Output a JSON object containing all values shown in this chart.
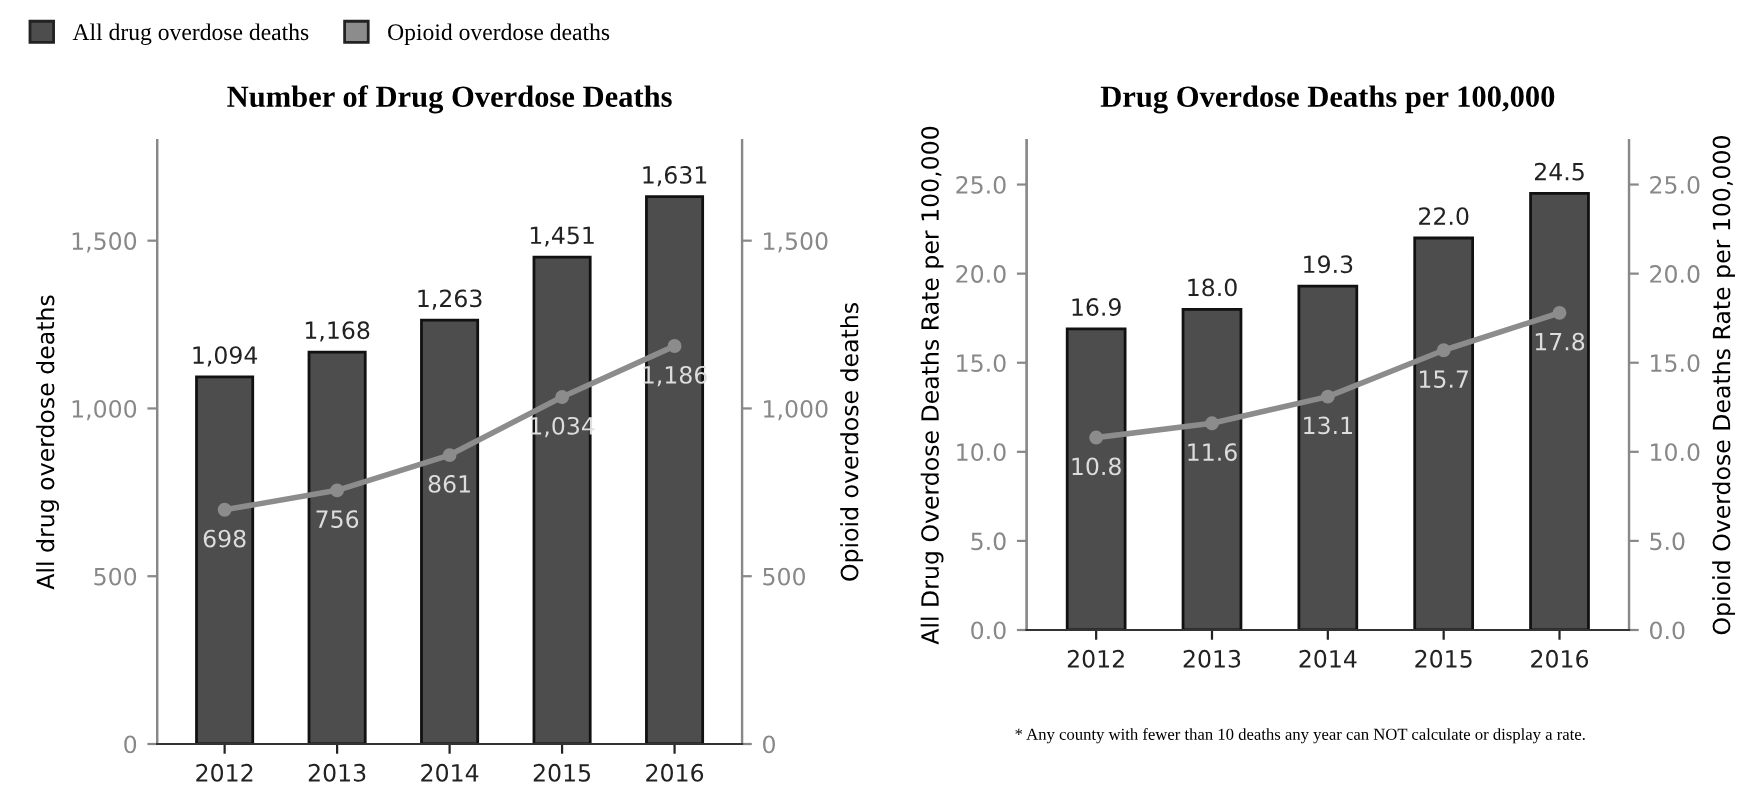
{
  "chart_data": [
    {
      "type": "bar",
      "title": "Number of Drug Overdose Deaths",
      "ylabel": "All drug overdose deaths",
      "y2label": "Opioid overdose deaths",
      "categories": [
        "2012",
        "2013",
        "2014",
        "2015",
        "2016"
      ],
      "series": [
        {
          "name": "All drug overdose deaths",
          "color": "#4d4d4d",
          "values": [
            1094,
            1168,
            1263,
            1451,
            1631
          ],
          "value_labels": [
            "1,094",
            "1,168",
            "1,263",
            "1,451",
            "1,631"
          ]
        },
        {
          "name": "Opioid overdose deaths",
          "type": "line",
          "axis": "y2",
          "color": "#8c8c8c",
          "values": [
            698,
            756,
            861,
            1034,
            1186
          ],
          "value_labels": [
            "698",
            "756",
            "861",
            "1,034",
            "1,186"
          ]
        }
      ],
      "ylim": [
        0,
        1800
      ],
      "yticks": [
        0,
        500,
        {
          "value": 1000,
          "label": "1,000"
        },
        {
          "value": 1500,
          "label": "1,500"
        }
      ],
      "y2lim": [
        0,
        1800
      ],
      "y2ticks": [
        0,
        500,
        {
          "value": 1000,
          "label": "1,000"
        },
        {
          "value": 1500,
          "label": "1,500"
        }
      ],
      "marker": "circle",
      "line_style": "solid",
      "grid": false,
      "legend": "top left"
    },
    {
      "type": "bar",
      "title": "Drug Overdose Deaths per 100,000",
      "ylabel": "All Drug Overdose Deaths Rate per 100,000",
      "y2label": "Opioid Overdose Deaths Rate per 100,000",
      "categories": [
        "2012",
        "2013",
        "2014",
        "2015",
        "2016"
      ],
      "series": [
        {
          "color": "#4d4d4d",
          "values": [
            16.9,
            18.0,
            19.3,
            22.0,
            24.5
          ],
          "value_labels": [
            "16.9",
            "18.0",
            "19.3",
            "22.0",
            "24.5"
          ]
        },
        {
          "type": "line",
          "axis": "y2",
          "color": "#8c8c8c",
          "values": [
            10.8,
            11.6,
            13.1,
            15.7,
            17.8
          ],
          "value_labels": [
            "10.8",
            "11.6",
            "13.1",
            "15.7",
            "17.8"
          ]
        }
      ],
      "ylim": [
        0,
        27.5
      ],
      "yticks": [
        {
          "value": 0,
          "label": "0.0"
        },
        {
          "value": 5,
          "label": "5.0"
        },
        {
          "value": 10,
          "label": "10.0"
        },
        {
          "value": 15,
          "label": "15.0"
        },
        {
          "value": 20,
          "label": "20.0"
        },
        {
          "value": 25,
          "label": "25.0"
        }
      ],
      "y2lim": [
        0,
        27.5
      ],
      "y2ticks": [
        {
          "value": 0,
          "label": "0.0"
        },
        {
          "value": 5,
          "label": "5.0"
        },
        {
          "value": 10,
          "label": "10.0"
        },
        {
          "value": 15,
          "label": "15.0"
        },
        {
          "value": 20,
          "label": "20.0"
        },
        {
          "value": 25,
          "label": "25.0"
        }
      ],
      "marker": "circle",
      "line_style": "solid",
      "grid": false,
      "annotations": [
        "* Any county with fewer than 10 deaths any year can NOT calculate or display a rate."
      ]
    }
  ]
}
